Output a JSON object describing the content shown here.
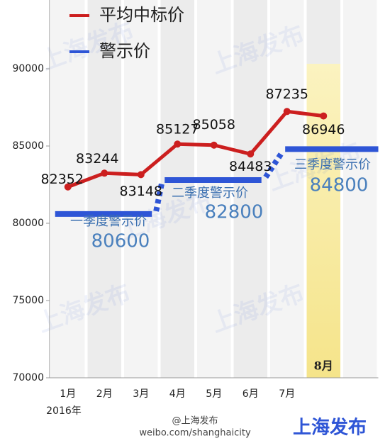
{
  "chart_data": {
    "type": "line",
    "categories": [
      "1月",
      "2月",
      "3月",
      "4月",
      "5月",
      "6月",
      "7月",
      "8月"
    ],
    "year_label": "2016年",
    "series": [
      {
        "name": "平均中标价",
        "color": "#cc1f1f",
        "values": [
          82352,
          83244,
          83148,
          85127,
          85058,
          84483,
          87235,
          86946
        ]
      },
      {
        "name": "警示价",
        "color": "#2e55d6"
      }
    ],
    "warning_levels": [
      {
        "label": "一季度警示价",
        "value": 80600
      },
      {
        "label": "二季度警示价",
        "value": 82800
      },
      {
        "label": "三季度警示价",
        "value": 84800
      }
    ],
    "ylim": [
      70000,
      94450
    ],
    "yticks": [
      70000,
      75000,
      80000,
      85000,
      90000
    ],
    "watermark": "上海发布",
    "footer": {
      "account": "@上海发布",
      "url": "weibo.com/shanghaicity",
      "logo": "上海发布"
    }
  }
}
